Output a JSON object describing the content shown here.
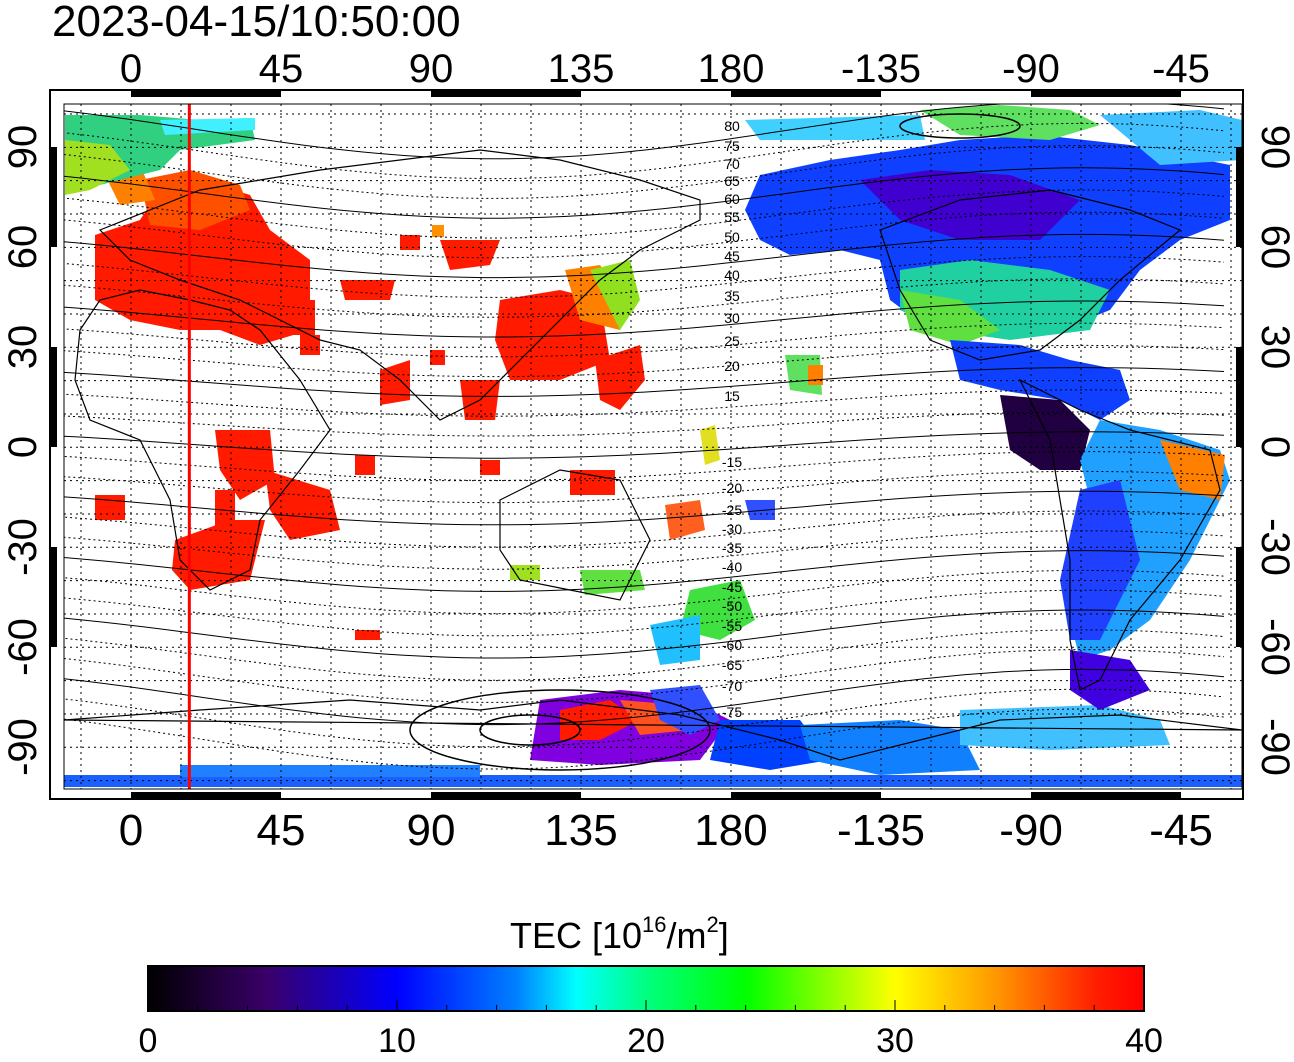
{
  "title": "2023-04-15/10:50:00",
  "map": {
    "top_longitude_ticks": [
      "0",
      "45",
      "90",
      "135",
      "180",
      "-135",
      "-90",
      "-45"
    ],
    "bottom_longitude_ticks": [
      "0",
      "45",
      "90",
      "135",
      "180",
      "-135",
      "-90",
      "-45"
    ],
    "left_latitude_ticks": [
      "90",
      "60",
      "30",
      "0",
      "-30",
      "-60",
      "-90"
    ],
    "right_latitude_ticks": [
      "90",
      "60",
      "30",
      "0",
      "-30",
      "-60",
      "-90"
    ],
    "contour_labels_north": [
      "80",
      "75",
      "70",
      "65",
      "60",
      "55",
      "50",
      "45",
      "40",
      "35",
      "30",
      "25",
      "20",
      "15"
    ],
    "contour_labels_south": [
      "-15",
      "-20",
      "-25",
      "-30",
      "-35",
      "-40",
      "-45",
      "-50",
      "-55",
      "-60",
      "-65",
      "-70",
      "-75"
    ],
    "terminator_longitude": 17.5
  },
  "colorbar": {
    "label_main": "TEC  [10",
    "label_exp1": "16",
    "label_mid": "/m",
    "label_exp2": "2",
    "label_end": "]",
    "ticks": [
      "0",
      "10",
      "20",
      "30",
      "40"
    ],
    "min": 0,
    "max": 40
  },
  "colors": {
    "terminator": "#ff0000",
    "low": "#000000",
    "high": "#ff0000"
  }
}
